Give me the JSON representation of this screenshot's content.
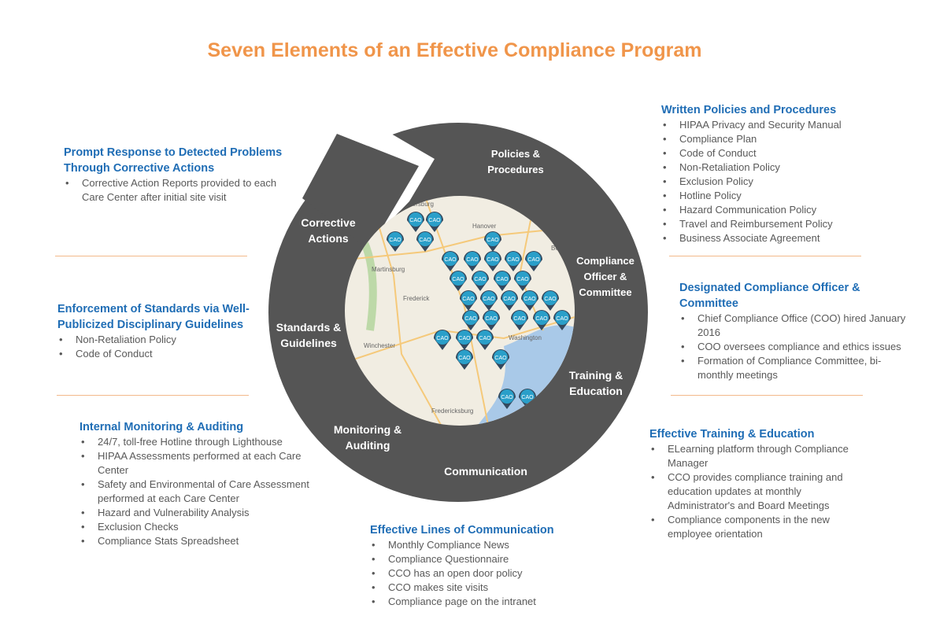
{
  "title": "Seven Elements of an Effective Compliance Program",
  "colors": {
    "title": "#f0954a",
    "heading": "#1f6db5",
    "ring": "#555555",
    "pin": "#2a9fc9",
    "rule": "#f3b98a"
  },
  "ring_labels": {
    "policies": "Policies & Procedures",
    "corrective": "Corrective Actions",
    "officer": "Compliance Officer & Committee",
    "standards": "Standards & Guidelines",
    "training": "Training & Education",
    "monitoring": "Monitoring & Auditing",
    "communication": "Communication"
  },
  "map": {
    "pin_label": "CAO",
    "places": [
      "Chambersburg",
      "Hanover",
      "Martinsburg",
      "Frederick",
      "Winchester",
      "Bel Air",
      "Washington",
      "Fredericksburg"
    ]
  },
  "blocks": {
    "written": {
      "heading": "Written Policies and Procedures",
      "items": [
        "HIPAA Privacy and Security Manual",
        "Compliance Plan",
        "Code of Conduct",
        "Non-Retaliation Policy",
        "Exclusion Policy",
        "Hotline Policy",
        "Hazard Communication Policy",
        "Travel and Reimbursement Policy",
        "Business Associate Agreement"
      ]
    },
    "prompt": {
      "heading": "Prompt Response to Detected Problems Through Corrective Actions",
      "items": [
        "Corrective Action Reports provided to each Care Center after initial site visit"
      ]
    },
    "enforcement": {
      "heading": "Enforcement of Standards via Well-Publicized Disciplinary Guidelines",
      "items": [
        "Non-Retaliation Policy",
        "Code of Conduct"
      ]
    },
    "monitoring": {
      "heading": "Internal Monitoring & Auditing",
      "items": [
        "24/7, toll-free Hotline through Lighthouse",
        "HIPAA Assessments performed at each Care Center",
        "Safety and Environmental of Care Assessment performed at each Care Center",
        "Hazard and Vulnerability Analysis",
        "Exclusion Checks",
        "Compliance Stats Spreadsheet"
      ]
    },
    "designated": {
      "heading": "Designated Compliance Officer & Committee",
      "items": [
        "Chief Compliance Office (COO) hired January 2016",
        "COO oversees compliance and ethics issues",
        "Formation of Compliance Committee, bi-monthly meetings"
      ]
    },
    "training": {
      "heading": "Effective Training & Education",
      "items": [
        "ELearning platform through Compliance Manager",
        "CCO provides compliance training and education updates at monthly Administrator's and Board Meetings",
        "Compliance components in the new employee orientation"
      ]
    },
    "communication": {
      "heading": "Effective Lines of Communication",
      "items": [
        "Monthly Compliance News",
        "Compliance Questionnaire",
        "CCO has an open door policy",
        "CCO makes site visits",
        "Compliance page on the intranet"
      ]
    }
  }
}
